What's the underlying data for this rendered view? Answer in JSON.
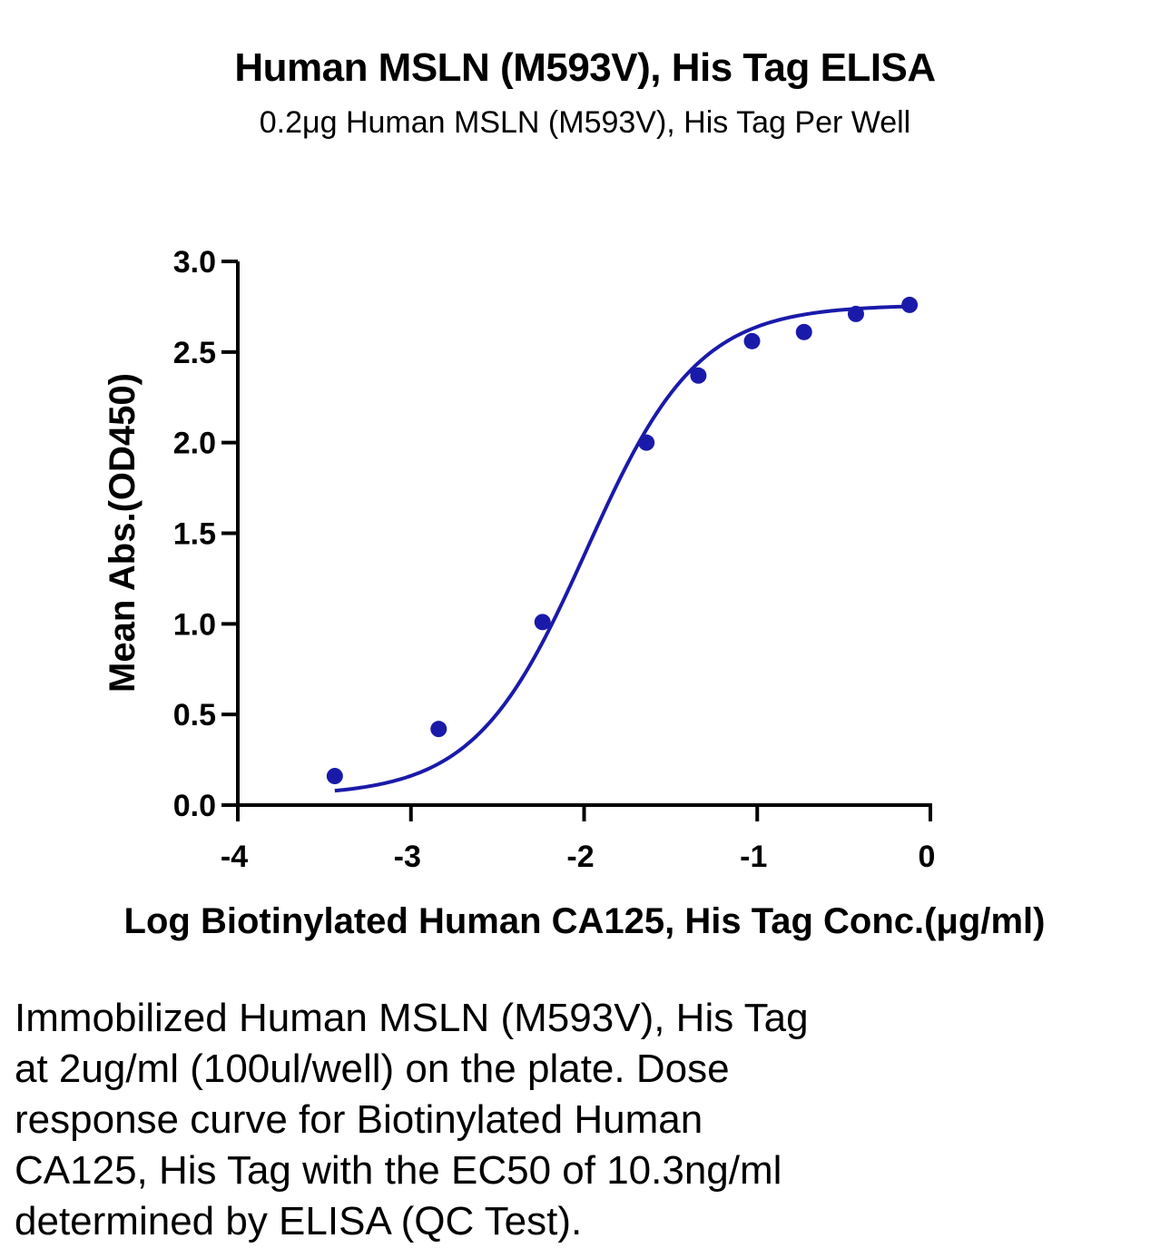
{
  "chart_data": {
    "type": "scatter",
    "title": "Human MSLN (M593V), His Tag ELISA",
    "subtitle": "0.2μg Human MSLN (M593V), His Tag Per Well",
    "xlabel": "Log Biotinylated Human CA125, His Tag Conc.(μg/ml)",
    "ylabel": "Mean Abs.(OD450)",
    "xlim": [
      -4,
      0
    ],
    "ylim": [
      0,
      3.0
    ],
    "x_ticks": [
      -4,
      -3,
      -2,
      -1,
      0
    ],
    "x_tick_labels": [
      "-4",
      "-3",
      "-2",
      "-1",
      "0"
    ],
    "y_ticks": [
      0,
      0.5,
      1.0,
      1.5,
      2.0,
      2.5,
      3.0
    ],
    "y_tick_labels": [
      "0.0",
      "0.5",
      "1.0",
      "1.5",
      "2.0",
      "2.5",
      "3.0"
    ],
    "grid": false,
    "series": [
      {
        "x": [
          -3.44,
          -2.84,
          -2.24,
          -1.64,
          -1.34,
          -1.03,
          -0.73,
          -0.43,
          -0.12
        ],
        "y": [
          0.16,
          0.42,
          1.01,
          2.0,
          2.37,
          2.56,
          2.61,
          2.71,
          2.76
        ],
        "color": "#1a1aaa",
        "fit": "4PL",
        "fit_params": {
          "bottom": 0.05,
          "top": 2.76,
          "log_ec50": -1.987,
          "hill": 1.35
        }
      }
    ]
  },
  "caption": "Immobilized Human MSLN (M593V), His Tag\nat 2ug/ml (100ul/well) on the plate. Dose\nresponse curve for Biotinylated Human\nCA125, His Tag with the EC50 of 10.3ng/ml\ndetermined by ELISA (QC Test)."
}
